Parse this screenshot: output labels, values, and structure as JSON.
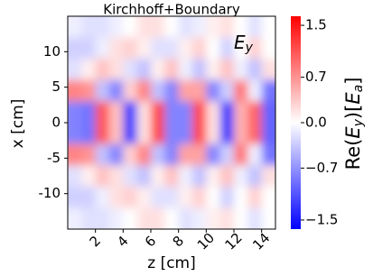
{
  "chart_data": {
    "type": "heatmap",
    "title": "Kirchhoff+Boundary",
    "annotation": {
      "base": "E",
      "sub": "y"
    },
    "xlabel": "z [cm]",
    "ylabel": "x [cm]",
    "colorbar_label": [
      "Re(",
      "E",
      "y",
      ")[",
      "E",
      "a",
      "]"
    ],
    "colormap": "bwr",
    "x": [
      0.5,
      1.5,
      2.5,
      3.5,
      4.5,
      5.5,
      6.5,
      7.5,
      8.5,
      9.5,
      10.5,
      11.5,
      12.5,
      13.5,
      14.5
    ],
    "y": [
      13.5,
      10.5,
      7.5,
      4.5,
      1.5,
      -1.5,
      -4.5,
      -7.5,
      -10.5,
      -13.5
    ],
    "z": [
      [
        -0.1,
        -0.2,
        -0.2,
        -0.1,
        0,
        0.2,
        0.2,
        0,
        -0.2,
        -0.1,
        0.1,
        0.2,
        0,
        -0.2,
        0
      ],
      [
        -0.3,
        -0.3,
        -0.1,
        0.2,
        0.3,
        0.1,
        -0.2,
        -0.2,
        0.1,
        0.3,
        0,
        -0.3,
        0,
        0.3,
        0
      ],
      [
        -0.2,
        0.1,
        0.4,
        0.2,
        -0.2,
        -0.4,
        0.1,
        0.4,
        -0.1,
        -0.4,
        0.1,
        0.4,
        -0.1,
        -0.4,
        0.2
      ],
      [
        0.8,
        0.7,
        -0.4,
        -0.8,
        0.3,
        0.8,
        -0.4,
        -0.8,
        0.6,
        0.6,
        -0.8,
        -0.3,
        0.9,
        -0.1,
        -0.9
      ],
      [
        -0.8,
        -0.9,
        1.1,
        0.4,
        -1.3,
        0.2,
        1.2,
        -0.8,
        -0.8,
        1.2,
        0.2,
        -1.3,
        0.5,
        1.0,
        -1.0
      ],
      [
        -0.8,
        -0.9,
        1.1,
        0.4,
        -1.3,
        0.2,
        1.2,
        -0.8,
        -0.8,
        1.2,
        0.2,
        -1.3,
        0.5,
        1.0,
        -1.0
      ],
      [
        0.8,
        0.7,
        -0.4,
        -0.8,
        0.3,
        0.8,
        -0.4,
        -0.8,
        0.6,
        0.6,
        -0.8,
        -0.3,
        0.9,
        -0.1,
        -0.9
      ],
      [
        -0.2,
        0.1,
        0.4,
        0.2,
        -0.2,
        -0.4,
        0.1,
        0.4,
        -0.1,
        -0.4,
        0.1,
        0.4,
        -0.1,
        -0.4,
        0.2
      ],
      [
        -0.3,
        -0.3,
        -0.1,
        0.2,
        0.3,
        0.1,
        -0.2,
        -0.2,
        0.1,
        0.3,
        0,
        -0.3,
        0,
        0.3,
        0
      ],
      [
        -0.1,
        -0.2,
        -0.2,
        -0.1,
        0,
        0.2,
        0.2,
        0,
        -0.2,
        -0.1,
        0.1,
        0.2,
        0,
        -0.2,
        0
      ]
    ],
    "xlim": [
      0,
      15
    ],
    "ylim": [
      -15,
      15
    ],
    "xticks": [
      2,
      4,
      6,
      8,
      10,
      12,
      14
    ],
    "yticks": [
      10,
      5,
      0,
      -5,
      -10
    ],
    "clim": [
      -1.64,
      1.64
    ],
    "cticks": [
      1.5,
      0.7,
      {
        "value": 0,
        "label": "0.0"
      },
      {
        "value": -0.7,
        "label": "−0.7"
      },
      {
        "value": -1.5,
        "label": "−1.5"
      }
    ]
  }
}
